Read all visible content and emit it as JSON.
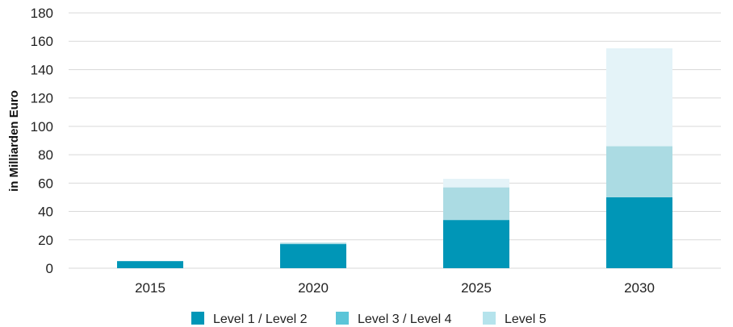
{
  "chart_data": {
    "type": "bar",
    "stacked": true,
    "categories": [
      "2015",
      "2020",
      "2025",
      "2030"
    ],
    "series": [
      {
        "name": "Level 1 / Level 2",
        "color": "#0096b7",
        "values": [
          5,
          17,
          34,
          50
        ]
      },
      {
        "name": "Level 3 / Level 4",
        "color": "#abdbe3",
        "values": [
          0,
          1,
          23,
          36
        ]
      },
      {
        "name": "Level 5",
        "color": "#e4f3f8",
        "values": [
          0,
          0,
          6,
          69
        ]
      }
    ],
    "legend_colors": [
      "#0096b7",
      "#5bc5d8",
      "#b5e3ec"
    ],
    "ylabel": "in Milliarden Euro",
    "ylim": [
      0,
      180
    ],
    "yticks": [
      "0",
      "20",
      "40",
      "60",
      "80",
      "100",
      "120",
      "140",
      "160",
      "180"
    ],
    "grid": true,
    "legend_position": "bottom"
  }
}
